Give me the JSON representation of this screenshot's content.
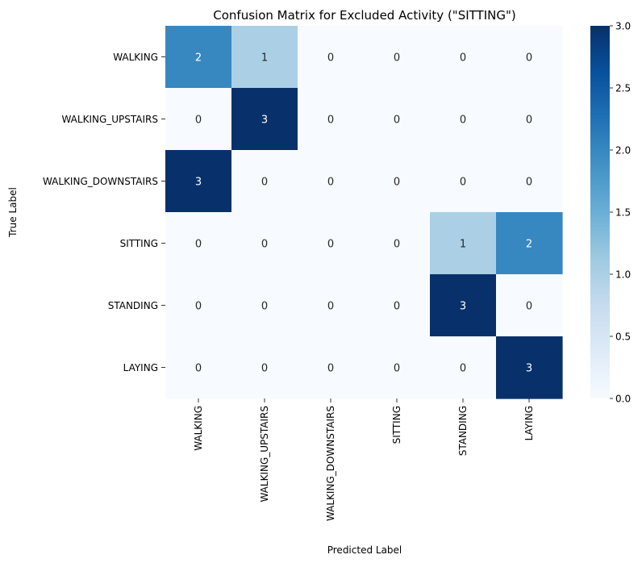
{
  "chart_data": {
    "type": "heatmap",
    "title": "Confusion Matrix for Excluded Activity (\"SITTING\")",
    "xlabel": "Predicted Label",
    "ylabel": "True Label",
    "x_categories": [
      "WALKING",
      "WALKING_UPSTAIRS",
      "WALKING_DOWNSTAIRS",
      "SITTING",
      "STANDING",
      "LAYING"
    ],
    "y_categories": [
      "WALKING",
      "WALKING_UPSTAIRS",
      "WALKING_DOWNSTAIRS",
      "SITTING",
      "STANDING",
      "LAYING"
    ],
    "values": [
      [
        2,
        1,
        0,
        0,
        0,
        0
      ],
      [
        0,
        3,
        0,
        0,
        0,
        0
      ],
      [
        3,
        0,
        0,
        0,
        0,
        0
      ],
      [
        0,
        0,
        0,
        0,
        1,
        2
      ],
      [
        0,
        0,
        0,
        0,
        3,
        0
      ],
      [
        0,
        0,
        0,
        0,
        0,
        3
      ]
    ],
    "colorbar": {
      "range": [
        0,
        3
      ],
      "ticks": [
        "0.0",
        "0.5",
        "1.0",
        "1.5",
        "2.0",
        "2.5",
        "3.0"
      ],
      "colormap": "Blues"
    }
  }
}
